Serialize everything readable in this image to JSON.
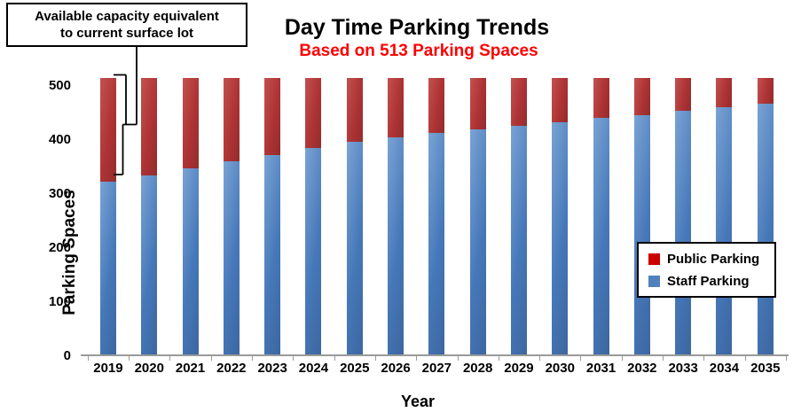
{
  "title": "Day Time Parking Trends",
  "subtitle": "Based on 513 Parking Spaces",
  "annotation": {
    "line1": "Available capacity equivalent",
    "line2": "to current surface lot"
  },
  "axis": {
    "x_title": "Year",
    "y_title": "Parking Spaces"
  },
  "legend": {
    "items": [
      {
        "label": "Public Parking",
        "color": "#cc0000"
      },
      {
        "label": "Staff Parking",
        "color": "#4f81bd"
      }
    ]
  },
  "colors": {
    "staff_bar": "#4678b9",
    "public_bar": "#ae3335",
    "subtitle": "#ff0000",
    "axis": "#9a9a9a"
  },
  "chart_data": {
    "type": "bar",
    "stacked": true,
    "title": "Day Time Parking Trends",
    "subtitle": "Based on 513 Parking Spaces",
    "xlabel": "Year",
    "ylabel": "Parking Spaces",
    "total_spaces": 513,
    "categories": [
      "2019",
      "2020",
      "2021",
      "2022",
      "2023",
      "2024",
      "2025",
      "2026",
      "2027",
      "2028",
      "2029",
      "2030",
      "2031",
      "2032",
      "2033",
      "2034",
      "2035"
    ],
    "series": [
      {
        "name": "Staff Parking",
        "color": "#4f81bd",
        "values": [
          320,
          333,
          346,
          358,
          370,
          383,
          395,
          403,
          410,
          417,
          424,
          431,
          438,
          444,
          451,
          459,
          465
        ]
      },
      {
        "name": "Public Parking",
        "color": "#c0504d",
        "values": [
          193,
          180,
          167,
          155,
          143,
          130,
          118,
          110,
          103,
          96,
          89,
          82,
          75,
          69,
          62,
          54,
          48
        ]
      }
    ],
    "ylim": [
      0,
      513
    ],
    "yticks": [
      0,
      100,
      200,
      300,
      400,
      500
    ],
    "grid": false,
    "legend_position": "right-middle",
    "annotation_text": "Available capacity equivalent to current surface lot",
    "annotation_target": "2019 public-parking segment"
  }
}
